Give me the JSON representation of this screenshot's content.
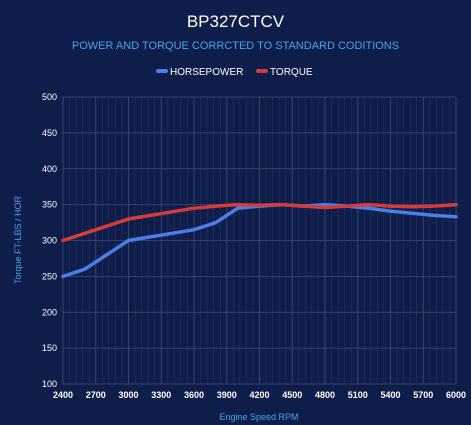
{
  "colors": {
    "background": "#0f1d4a",
    "grid_major": "#3f4b72",
    "grid_minor": "#25325c",
    "axis_text": "#ffffff",
    "label_text": "#4aa3e8",
    "horsepower": "#4a7fe8",
    "torque": "#d63a3a"
  },
  "chart_data": {
    "type": "line",
    "title": "BP327CTCV",
    "subtitle": "POWER AND TORQUE CORRCTED TO STANDARD CODITIONS",
    "xlabel": "Engine Speed RPM",
    "ylabel": "Torque FT-LBS / HOR",
    "xlim": [
      2400,
      6000
    ],
    "ylim": [
      100,
      500
    ],
    "x_ticks": [
      "2400",
      "2700",
      "3000",
      "3300",
      "3600",
      "3900",
      "4200",
      "4500",
      "4800",
      "5100",
      "5400",
      "5700",
      "6000"
    ],
    "y_ticks": [
      "100",
      "150",
      "200",
      "250",
      "300",
      "350",
      "400",
      "450",
      "500"
    ],
    "legend_position": "top-center",
    "grid": true,
    "series": [
      {
        "name": "HORSEPOWER",
        "color": "#4a7fe8",
        "points": [
          [
            2400,
            250
          ],
          [
            2600,
            260
          ],
          [
            2800,
            280
          ],
          [
            3000,
            300
          ],
          [
            3200,
            305
          ],
          [
            3400,
            310
          ],
          [
            3600,
            315
          ],
          [
            3800,
            325
          ],
          [
            4000,
            345
          ],
          [
            4200,
            348
          ],
          [
            4400,
            350
          ],
          [
            4600,
            348
          ],
          [
            4800,
            350
          ],
          [
            5000,
            348
          ],
          [
            5200,
            345
          ],
          [
            5400,
            341
          ],
          [
            5600,
            338
          ],
          [
            5800,
            335
          ],
          [
            6000,
            333
          ]
        ]
      },
      {
        "name": "TORQUE",
        "color": "#d63a3a",
        "points": [
          [
            2400,
            300
          ],
          [
            2600,
            310
          ],
          [
            2800,
            320
          ],
          [
            3000,
            330
          ],
          [
            3200,
            335
          ],
          [
            3400,
            340
          ],
          [
            3600,
            345
          ],
          [
            3800,
            348
          ],
          [
            4000,
            350
          ],
          [
            4200,
            349
          ],
          [
            4400,
            350
          ],
          [
            4600,
            348
          ],
          [
            4800,
            346
          ],
          [
            5000,
            348
          ],
          [
            5200,
            350
          ],
          [
            5400,
            348
          ],
          [
            5600,
            347
          ],
          [
            5800,
            348
          ],
          [
            6000,
            350
          ]
        ]
      }
    ]
  }
}
